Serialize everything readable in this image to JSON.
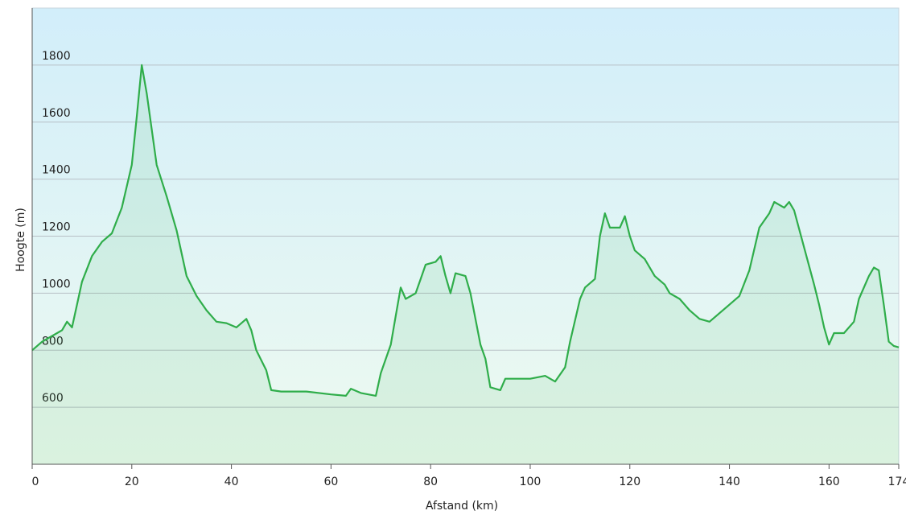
{
  "chart_data": {
    "type": "area",
    "x_label": "Afstand  (km)",
    "y_label": "Hoogte (m)",
    "x": [
      0,
      2,
      4,
      6,
      7,
      8,
      9,
      10,
      12,
      14,
      16,
      18,
      20,
      21,
      22,
      23,
      25,
      27,
      29,
      31,
      33,
      35,
      37,
      39,
      41,
      43,
      44,
      45,
      47,
      48,
      50,
      55,
      60,
      63,
      64,
      66,
      69,
      70,
      72,
      73,
      74,
      75,
      77,
      78,
      79,
      81,
      82,
      83,
      84,
      85,
      87,
      88,
      90,
      91,
      92,
      94,
      95,
      97,
      100,
      103,
      105,
      107,
      108,
      110,
      111,
      113,
      114,
      115,
      116,
      118,
      119,
      120,
      121,
      123,
      125,
      127,
      128,
      130,
      132,
      134,
      136,
      138,
      140,
      142,
      144,
      146,
      148,
      149,
      151,
      152,
      153,
      155,
      157,
      158,
      159,
      160,
      161,
      163,
      165,
      166,
      168,
      169,
      170,
      171,
      172,
      173,
      174
    ],
    "series": [
      {
        "color": "#2fad4a",
        "values": [
          800,
          830,
          850,
          870,
          900,
          880,
          960,
          1040,
          1130,
          1180,
          1210,
          1300,
          1450,
          1620,
          1800,
          1700,
          1450,
          1340,
          1220,
          1060,
          990,
          940,
          900,
          895,
          880,
          910,
          870,
          800,
          730,
          660,
          655,
          655,
          645,
          640,
          665,
          650,
          640,
          720,
          820,
          920,
          1020,
          980,
          1000,
          1050,
          1100,
          1110,
          1130,
          1060,
          1000,
          1070,
          1060,
          1000,
          820,
          770,
          670,
          660,
          700,
          700,
          700,
          710,
          690,
          740,
          830,
          980,
          1020,
          1050,
          1200,
          1280,
          1230,
          1230,
          1270,
          1200,
          1150,
          1120,
          1060,
          1030,
          1000,
          980,
          940,
          910,
          900,
          930,
          960,
          990,
          1080,
          1230,
          1280,
          1320,
          1300,
          1320,
          1290,
          1160,
          1030,
          960,
          880,
          820,
          860,
          860,
          900,
          980,
          1060,
          1090,
          1080,
          960,
          830,
          815,
          810
        ]
      }
    ],
    "xlim": [
      0,
      174
    ],
    "xticks": [
      0,
      20,
      40,
      60,
      80,
      100,
      120,
      140,
      160,
      174
    ],
    "ylim": [
      400,
      2000
    ],
    "yticks": [
      600,
      800,
      1000,
      1200,
      1400,
      1600,
      1800
    ],
    "grid": true
  }
}
